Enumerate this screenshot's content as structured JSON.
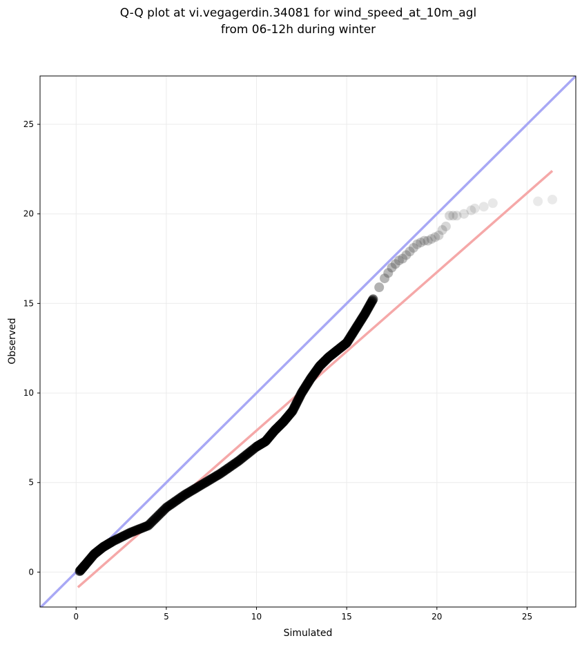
{
  "chart_data": {
    "type": "scatter",
    "title_line1": "Q-Q plot at vi.vegagerdin.34081 for wind_speed_at_10m_agl",
    "title_line2": "from 06-12h during winter",
    "xlabel": "Simulated",
    "ylabel": "Observed",
    "xlim": [
      -2,
      27.7
    ],
    "ylim": [
      -1.95,
      27.7
    ],
    "xticks": [
      0,
      5,
      10,
      15,
      20,
      25
    ],
    "yticks": [
      0,
      5,
      10,
      15,
      20,
      25
    ],
    "grid": true,
    "colors": {
      "points": "#000000",
      "identity_line": "#a8a8f5",
      "fit_line": "#f5a8a8",
      "grid": "#ebebeb",
      "frame": "#000000"
    },
    "identity_line": {
      "x": [
        -2,
        27.7
      ],
      "y": [
        -2,
        27.7
      ]
    },
    "fit_line": {
      "x": [
        0.1,
        26.4
      ],
      "y": [
        -0.85,
        22.4
      ]
    },
    "quantile_curve": {
      "x": [
        0.2,
        0.5,
        1.0,
        1.5,
        2.0,
        3.0,
        4.0,
        5.0,
        6.0,
        7.0,
        8.0,
        9.0,
        10.0,
        10.5,
        11.0,
        11.5,
        12.0,
        12.5,
        13.0,
        13.5,
        14.0,
        14.5,
        15.0,
        15.5,
        16.0,
        16.5
      ],
      "y": [
        0.05,
        0.4,
        1.0,
        1.4,
        1.7,
        2.2,
        2.6,
        3.6,
        4.3,
        4.9,
        5.5,
        6.2,
        7.0,
        7.3,
        7.9,
        8.4,
        9.0,
        10.0,
        10.8,
        11.5,
        12.0,
        12.4,
        12.8,
        13.6,
        14.4,
        15.3
      ]
    },
    "tail_points": {
      "x": [
        16.8,
        17.1,
        17.3,
        17.5,
        17.7,
        17.9,
        18.1,
        18.3,
        18.5,
        18.7,
        18.9,
        19.1,
        19.3,
        19.5,
        19.7,
        19.9,
        20.1,
        20.3,
        20.5,
        20.7,
        20.9,
        21.1,
        21.5,
        21.9,
        22.1,
        22.6,
        23.1,
        25.6,
        26.4
      ],
      "y": [
        15.9,
        16.4,
        16.7,
        17.0,
        17.2,
        17.4,
        17.5,
        17.7,
        17.9,
        18.1,
        18.3,
        18.4,
        18.5,
        18.5,
        18.6,
        18.7,
        18.8,
        19.1,
        19.3,
        19.9,
        19.9,
        19.9,
        20.0,
        20.2,
        20.3,
        20.4,
        20.6,
        20.7,
        20.8
      ]
    }
  }
}
